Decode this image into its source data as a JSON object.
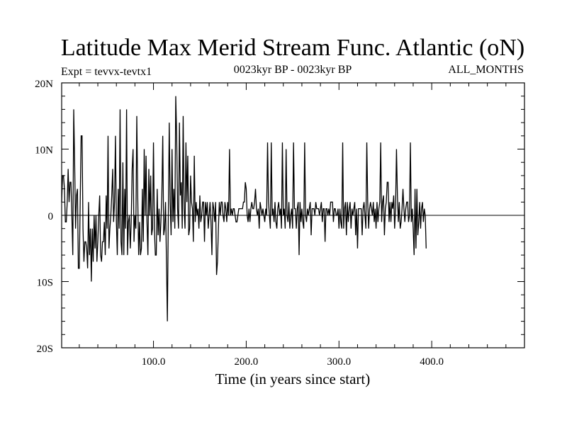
{
  "chart_data": {
    "type": "line",
    "title": "Latitude Max Merid Stream Func. Atlantic (oN)",
    "subtitle_left": "Expt = tevvx-tevtx1",
    "subtitle_center": "0023kyr BP - 0023kyr BP",
    "subtitle_right": "ALL_MONTHS",
    "xlabel": "Time (in years since start)",
    "ylabel": "",
    "xlim": [
      1,
      500
    ],
    "ylim": [
      -20,
      20
    ],
    "x_ticks": [
      {
        "value": 100,
        "label": "100.0"
      },
      {
        "value": 200,
        "label": "200.0"
      },
      {
        "value": 300,
        "label": "300.0"
      },
      {
        "value": 400,
        "label": "400.0"
      }
    ],
    "y_ticks": [
      {
        "value": 20,
        "label": "20N"
      },
      {
        "value": 10,
        "label": "10N"
      },
      {
        "value": 0,
        "label": "0"
      },
      {
        "value": -10,
        "label": "10S"
      },
      {
        "value": -20,
        "label": "20S"
      }
    ],
    "zero_line": true,
    "grid": false,
    "series": [
      {
        "color": "#000000",
        "x_start": 1,
        "x_step": 1,
        "values": [
          2,
          6,
          6,
          4,
          -1,
          -1,
          2,
          7,
          2,
          5,
          5,
          0,
          -6,
          16,
          8,
          -2,
          3,
          4,
          -8,
          -8,
          2,
          12,
          12,
          -2,
          -7,
          -4,
          -4,
          -5,
          -8,
          2,
          -6,
          -2,
          -10,
          -2,
          -7,
          0,
          -5,
          0,
          -7,
          -4,
          0,
          3,
          -6,
          -7,
          -4,
          -4,
          -1,
          -6,
          3,
          -2,
          12,
          -5,
          -2,
          0,
          3,
          7,
          -1,
          2,
          12,
          -1,
          -6,
          4,
          -2,
          16,
          -4,
          -6,
          8,
          -6,
          4,
          -2,
          16,
          -6,
          -1,
          0,
          -5,
          -1,
          7,
          10,
          -4,
          0,
          -2,
          15,
          3,
          -6,
          -1,
          -6,
          -5,
          4,
          -4,
          10,
          0,
          9,
          -1,
          -6,
          7,
          0,
          6,
          -3,
          -2,
          11,
          -2,
          -6,
          -6,
          4,
          -3,
          1,
          -4,
          -1,
          3,
          12,
          -3,
          -2,
          2,
          -7,
          -16,
          0,
          14,
          2,
          -3,
          10,
          -1,
          4,
          -2,
          18,
          12,
          1,
          -2,
          14,
          3,
          5,
          -2,
          15,
          1,
          -2,
          11,
          2,
          9,
          -3,
          -2,
          6,
          2,
          1,
          -4,
          9,
          -1,
          2,
          0,
          1,
          -2,
          3,
          -1,
          0,
          2,
          2,
          -4,
          2,
          0,
          2,
          -2,
          0,
          2,
          -1,
          -6,
          2,
          1,
          -1,
          2,
          -9,
          -7,
          -2,
          2,
          0,
          2,
          2,
          0,
          -1,
          2,
          1,
          -1,
          2,
          0,
          10,
          0,
          1,
          0,
          1,
          1,
          0,
          -1,
          -1,
          0,
          1,
          1,
          1,
          1,
          1,
          2,
          2,
          5,
          4,
          0,
          -1,
          1,
          -1,
          1,
          2,
          1,
          1,
          2,
          4,
          1,
          0,
          1,
          -2,
          2,
          1,
          0,
          1,
          0,
          -1,
          1,
          0,
          11,
          2,
          0,
          -2,
          11,
          0,
          1,
          -1,
          2,
          -1,
          -2,
          1,
          2,
          0,
          1,
          -2,
          11,
          0,
          1,
          -2,
          10,
          0,
          -1,
          2,
          -2,
          0,
          1,
          -2,
          11,
          1,
          1,
          -2,
          1,
          2,
          -6,
          2,
          -1,
          1,
          -1,
          -2,
          11,
          0,
          -1,
          1,
          0,
          1,
          2,
          -3,
          1,
          1,
          1,
          0,
          2,
          1,
          1,
          1,
          0,
          1,
          2,
          -1,
          1,
          1,
          -4,
          1,
          1,
          0,
          1,
          0,
          2,
          2,
          2,
          -1,
          1,
          1,
          0,
          0,
          1,
          -2,
          1,
          -1,
          -2,
          11,
          -2,
          1,
          2,
          -3,
          2,
          -1,
          1,
          2,
          -2,
          1,
          0,
          1,
          2,
          -3,
          1,
          -5,
          1,
          1,
          1,
          1,
          -3,
          1,
          2,
          0,
          -2,
          11,
          2,
          -2,
          1,
          2,
          1,
          0,
          2,
          -1,
          1,
          -2,
          2,
          -1,
          1,
          2,
          11,
          -1,
          2,
          3,
          -3,
          1,
          2,
          5,
          5,
          -1,
          2,
          -1,
          2,
          1,
          3,
          -2,
          1,
          10,
          3,
          -1,
          2,
          -2,
          -1,
          1,
          4,
          1,
          -1,
          1,
          2,
          2,
          -1,
          0,
          11,
          -1,
          1,
          -2,
          -6,
          4,
          -5,
          4,
          -3,
          -1,
          2,
          -2,
          1,
          2,
          -1,
          1,
          0,
          -5
        ]
      }
    ]
  }
}
